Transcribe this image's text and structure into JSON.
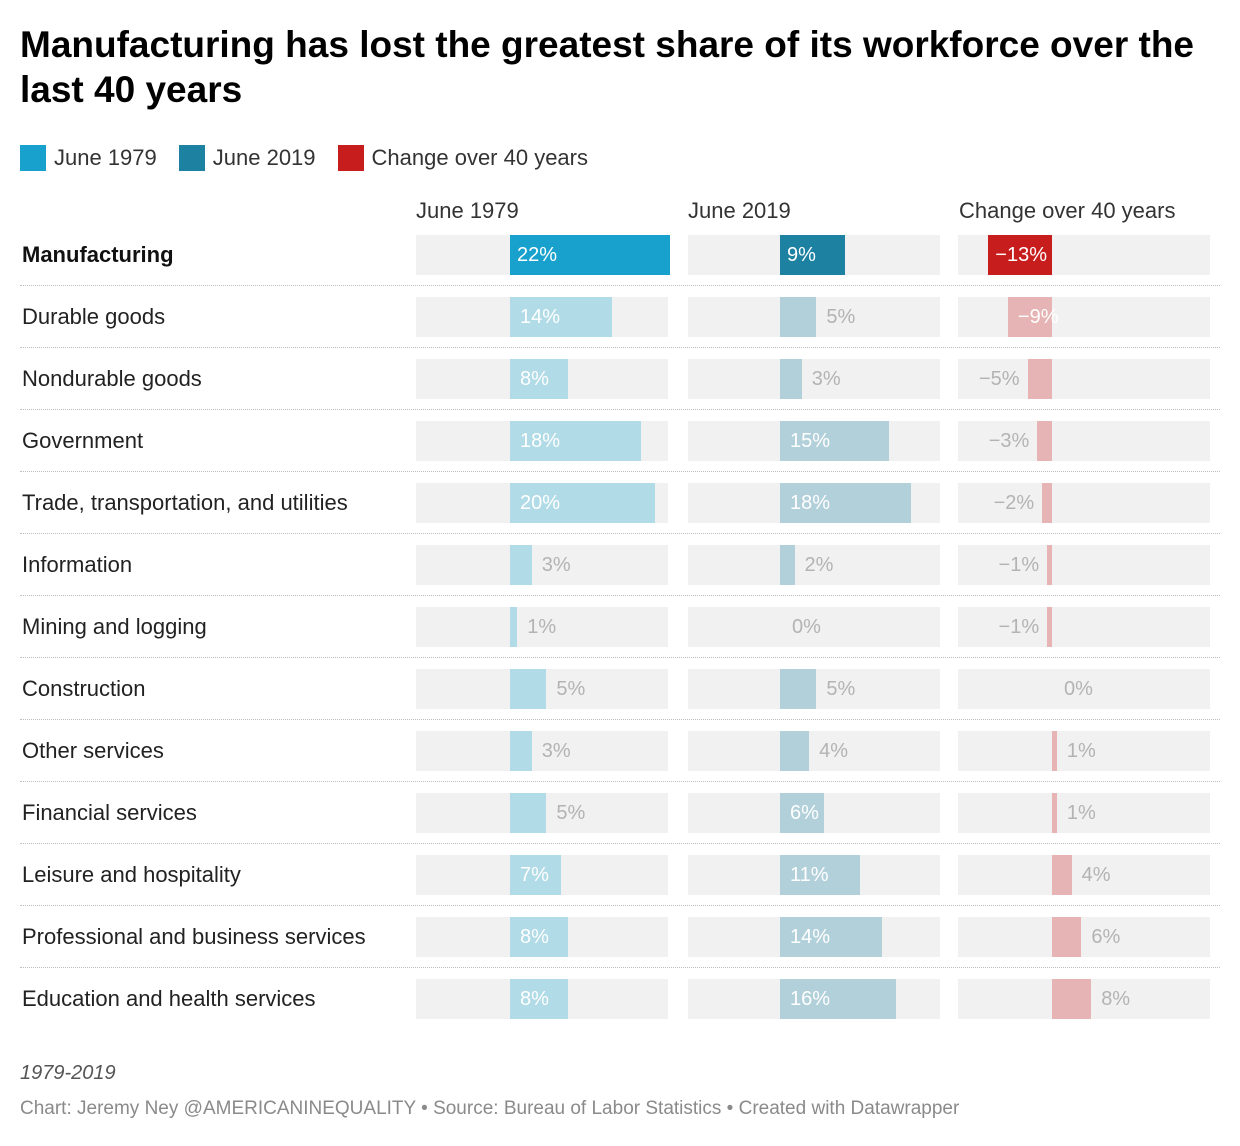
{
  "title": "Manufacturing has lost the greatest share of its workforce over the last 40 years",
  "legend": [
    {
      "label": "June 1979",
      "color": "#18a1cd"
    },
    {
      "label": "June 2019",
      "color": "#1d81a2"
    },
    {
      "label": "Change over 40 years",
      "color": "#c71e1d"
    }
  ],
  "columns": [
    "June 1979",
    "June 2019",
    "Change over 40 years"
  ],
  "note": "1979-2019",
  "footer": "Chart: Jeremy Ney @AMERICANINEQUALITY • Source: Bureau of Labor Statistics • Created with Datawrapper",
  "chart_data": {
    "type": "bar",
    "categories": [
      "Manufacturing",
      "Durable goods",
      "Nondurable goods",
      "Government",
      "Trade, transportation, and utilities",
      "Information",
      "Mining and logging",
      "Construction",
      "Other services",
      "Financial services",
      "Leisure and hospitality",
      "Professional and business services",
      "Education and health services"
    ],
    "series": [
      {
        "name": "June 1979",
        "values": [
          22,
          14,
          8,
          18,
          20,
          3,
          1,
          5,
          3,
          5,
          7,
          8,
          8
        ],
        "labels": [
          "22%",
          "14%",
          "8%",
          "18%",
          "20%",
          "3%",
          "1%",
          "5%",
          "3%",
          "5%",
          "7%",
          "8%",
          "8%"
        ]
      },
      {
        "name": "June 2019",
        "values": [
          9,
          5,
          3,
          15,
          18,
          2,
          0,
          5,
          4,
          6,
          11,
          14,
          16
        ],
        "labels": [
          "9%",
          "5%",
          "3%",
          "15%",
          "18%",
          "2%",
          "0%",
          "5%",
          "4%",
          "6%",
          "11%",
          "14%",
          "16%"
        ]
      },
      {
        "name": "Change over 40 years",
        "values": [
          -13,
          -9,
          -5,
          -3,
          -2,
          -1,
          -1,
          0,
          1,
          1,
          4,
          6,
          8
        ],
        "labels": [
          "−13%",
          "−9%",
          "−5%",
          "−3%",
          "−2%",
          "−1%",
          "−1%",
          "0%",
          "1%",
          "1%",
          "4%",
          "6%",
          "8%"
        ]
      }
    ],
    "highlighted_category": "Manufacturing",
    "colors": {
      "june_1979": "#18a1cd",
      "june_1979_muted": "#b1dbe6",
      "june_2019": "#1d81a2",
      "june_2019_muted": "#b2d0da",
      "change": "#c71e1d",
      "change_muted": "#e6b4b4"
    }
  }
}
